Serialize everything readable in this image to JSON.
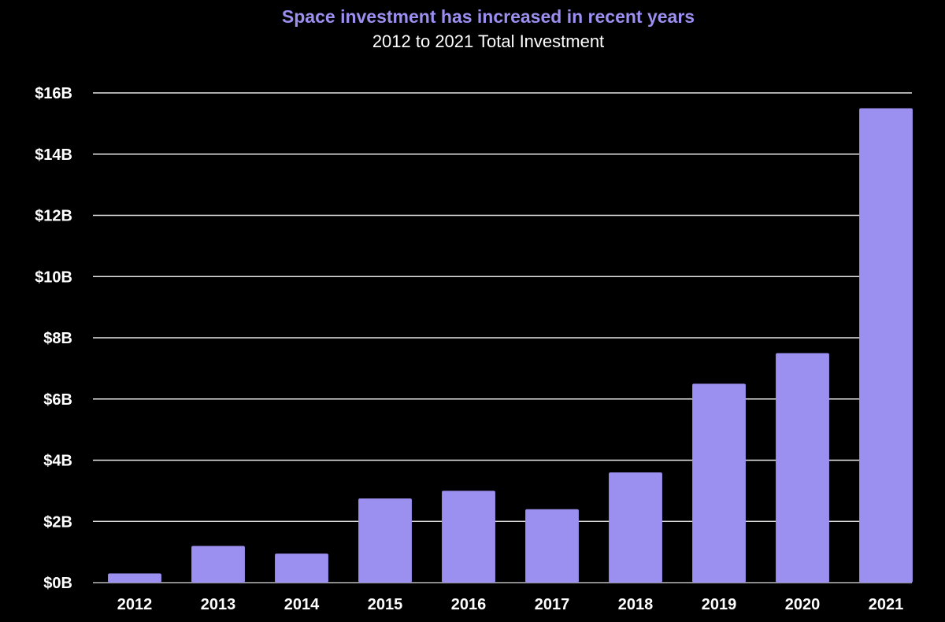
{
  "chart_data": {
    "type": "bar",
    "title": "Space investment has increased in recent years",
    "subtitle": "2012 to 2021 Total Investment",
    "categories": [
      "2012",
      "2013",
      "2014",
      "2015",
      "2016",
      "2017",
      "2018",
      "2019",
      "2020",
      "2021"
    ],
    "values": [
      0.3,
      1.2,
      0.95,
      2.75,
      3.0,
      2.4,
      3.6,
      6.5,
      7.5,
      15.5
    ],
    "unit": "billion USD",
    "ylim": [
      0,
      16
    ],
    "yticks": [
      0,
      2,
      4,
      6,
      8,
      10,
      12,
      14,
      16
    ],
    "ytick_labels": [
      "$0B",
      "$2B",
      "$4B",
      "$6B",
      "$8B",
      "$10B",
      "$12B",
      "$14B",
      "$16B"
    ],
    "grid": true,
    "legend": "none",
    "colors": {
      "bar": "#9b8ff0",
      "title": "#9b8ff0",
      "text": "#ffffff",
      "grid": "#e6e6e6",
      "background": "#000000"
    }
  }
}
